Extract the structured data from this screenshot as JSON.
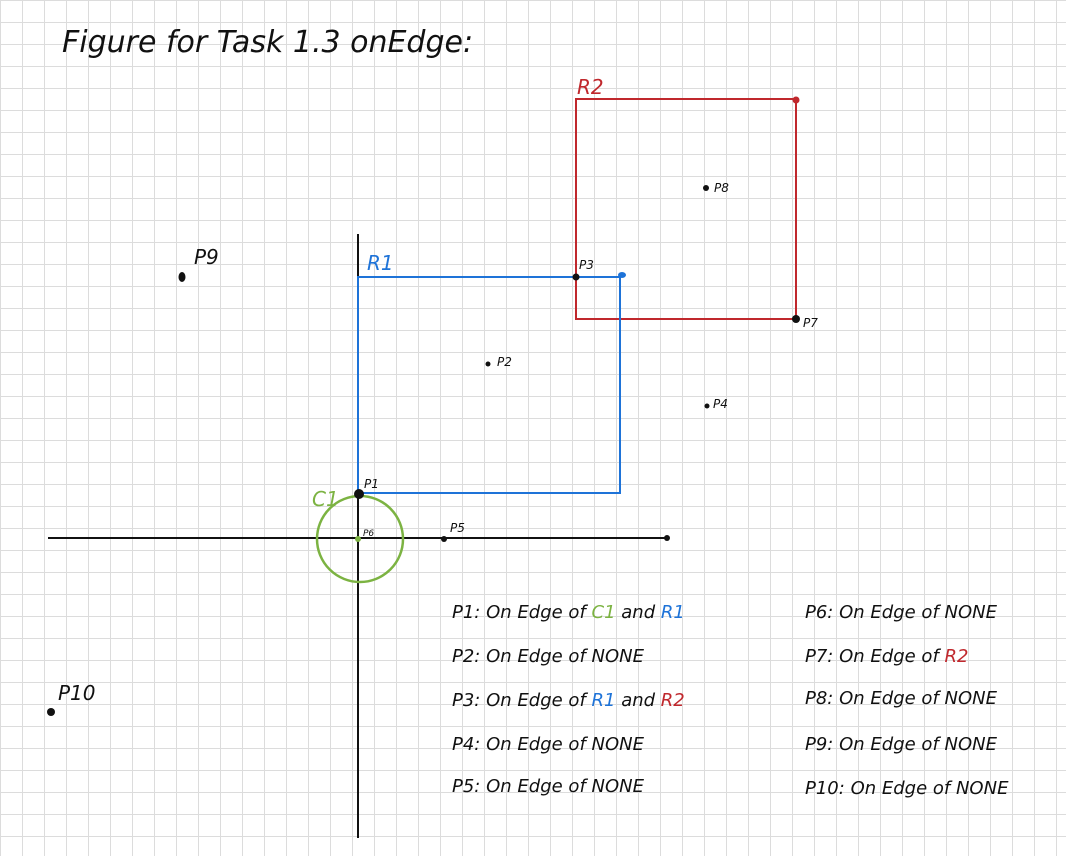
{
  "title": "Figure for Task 1.3 onEdge:",
  "shapes": {
    "r1_label": "R1",
    "r2_label": "R2",
    "c1_label": "C1"
  },
  "points": [
    {
      "id": "P1",
      "label": "P1"
    },
    {
      "id": "P2",
      "label": "P2"
    },
    {
      "id": "P3",
      "label": "P3"
    },
    {
      "id": "P4",
      "label": "P4"
    },
    {
      "id": "P5",
      "label": "P5"
    },
    {
      "id": "P6",
      "label": "P6"
    },
    {
      "id": "P7",
      "label": "P7"
    },
    {
      "id": "P8",
      "label": "P8"
    },
    {
      "id": "P9",
      "label": "P9"
    },
    {
      "id": "P10",
      "label": "P10"
    }
  ],
  "results": [
    {
      "point": "P1:",
      "text": "On Edge of",
      "parts": [
        "C1",
        " and ",
        "R1"
      ]
    },
    {
      "point": "P2:",
      "text": "On Edge of",
      "parts": [
        "NONE"
      ]
    },
    {
      "point": "P3:",
      "text": "On Edge of",
      "parts": [
        "R1",
        " and ",
        "R2"
      ]
    },
    {
      "point": "P4:",
      "text": "On Edge of",
      "parts": [
        "NONE"
      ]
    },
    {
      "point": "P5:",
      "text": "On Edge of",
      "parts": [
        "NONE"
      ]
    },
    {
      "point": "P6:",
      "text": "On Edge of",
      "parts": [
        "NONE"
      ]
    },
    {
      "point": "P7:",
      "text": "On Edge of",
      "parts": [
        "R2"
      ]
    },
    {
      "point": "P8:",
      "text": "On Edge of",
      "parts": [
        "NONE"
      ]
    },
    {
      "point": "P9:",
      "text": "On Edge of",
      "parts": [
        "NONE"
      ]
    },
    {
      "point": "P10:",
      "text": "On Edge of",
      "parts": [
        "NONE"
      ]
    }
  ],
  "colors": {
    "r1": "#1e73d8",
    "r2": "#c0282d",
    "c1": "#7cb342",
    "ink": "#111111"
  }
}
